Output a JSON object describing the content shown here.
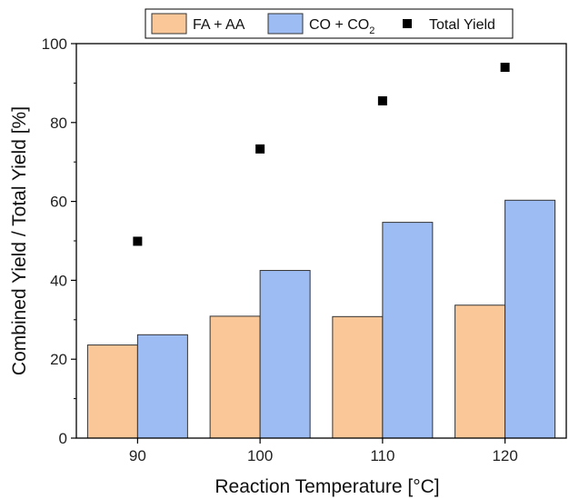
{
  "chart_data": {
    "type": "bar",
    "categories": [
      "90",
      "100",
      "110",
      "120"
    ],
    "series": [
      {
        "name": "FA + AA",
        "values": [
          23.6,
          30.9,
          30.8,
          33.7
        ],
        "color": "#fac898"
      },
      {
        "name": "CO + CO2",
        "values": [
          26.2,
          42.5,
          54.7,
          60.3
        ],
        "color": "#9dbcf3"
      }
    ],
    "scatter": {
      "name": "Total Yield",
      "values": [
        49.9,
        73.3,
        85.5,
        94.0
      ],
      "color": "#000000"
    },
    "xlabel": "Reaction Temperature [°C]",
    "ylabel": "Combined Yield / Total Yield [%]",
    "ylim": [
      0,
      100
    ],
    "yticks": [
      "0",
      "20",
      "40",
      "60",
      "80",
      "100"
    ],
    "legend_position": "top",
    "grid": false
  }
}
